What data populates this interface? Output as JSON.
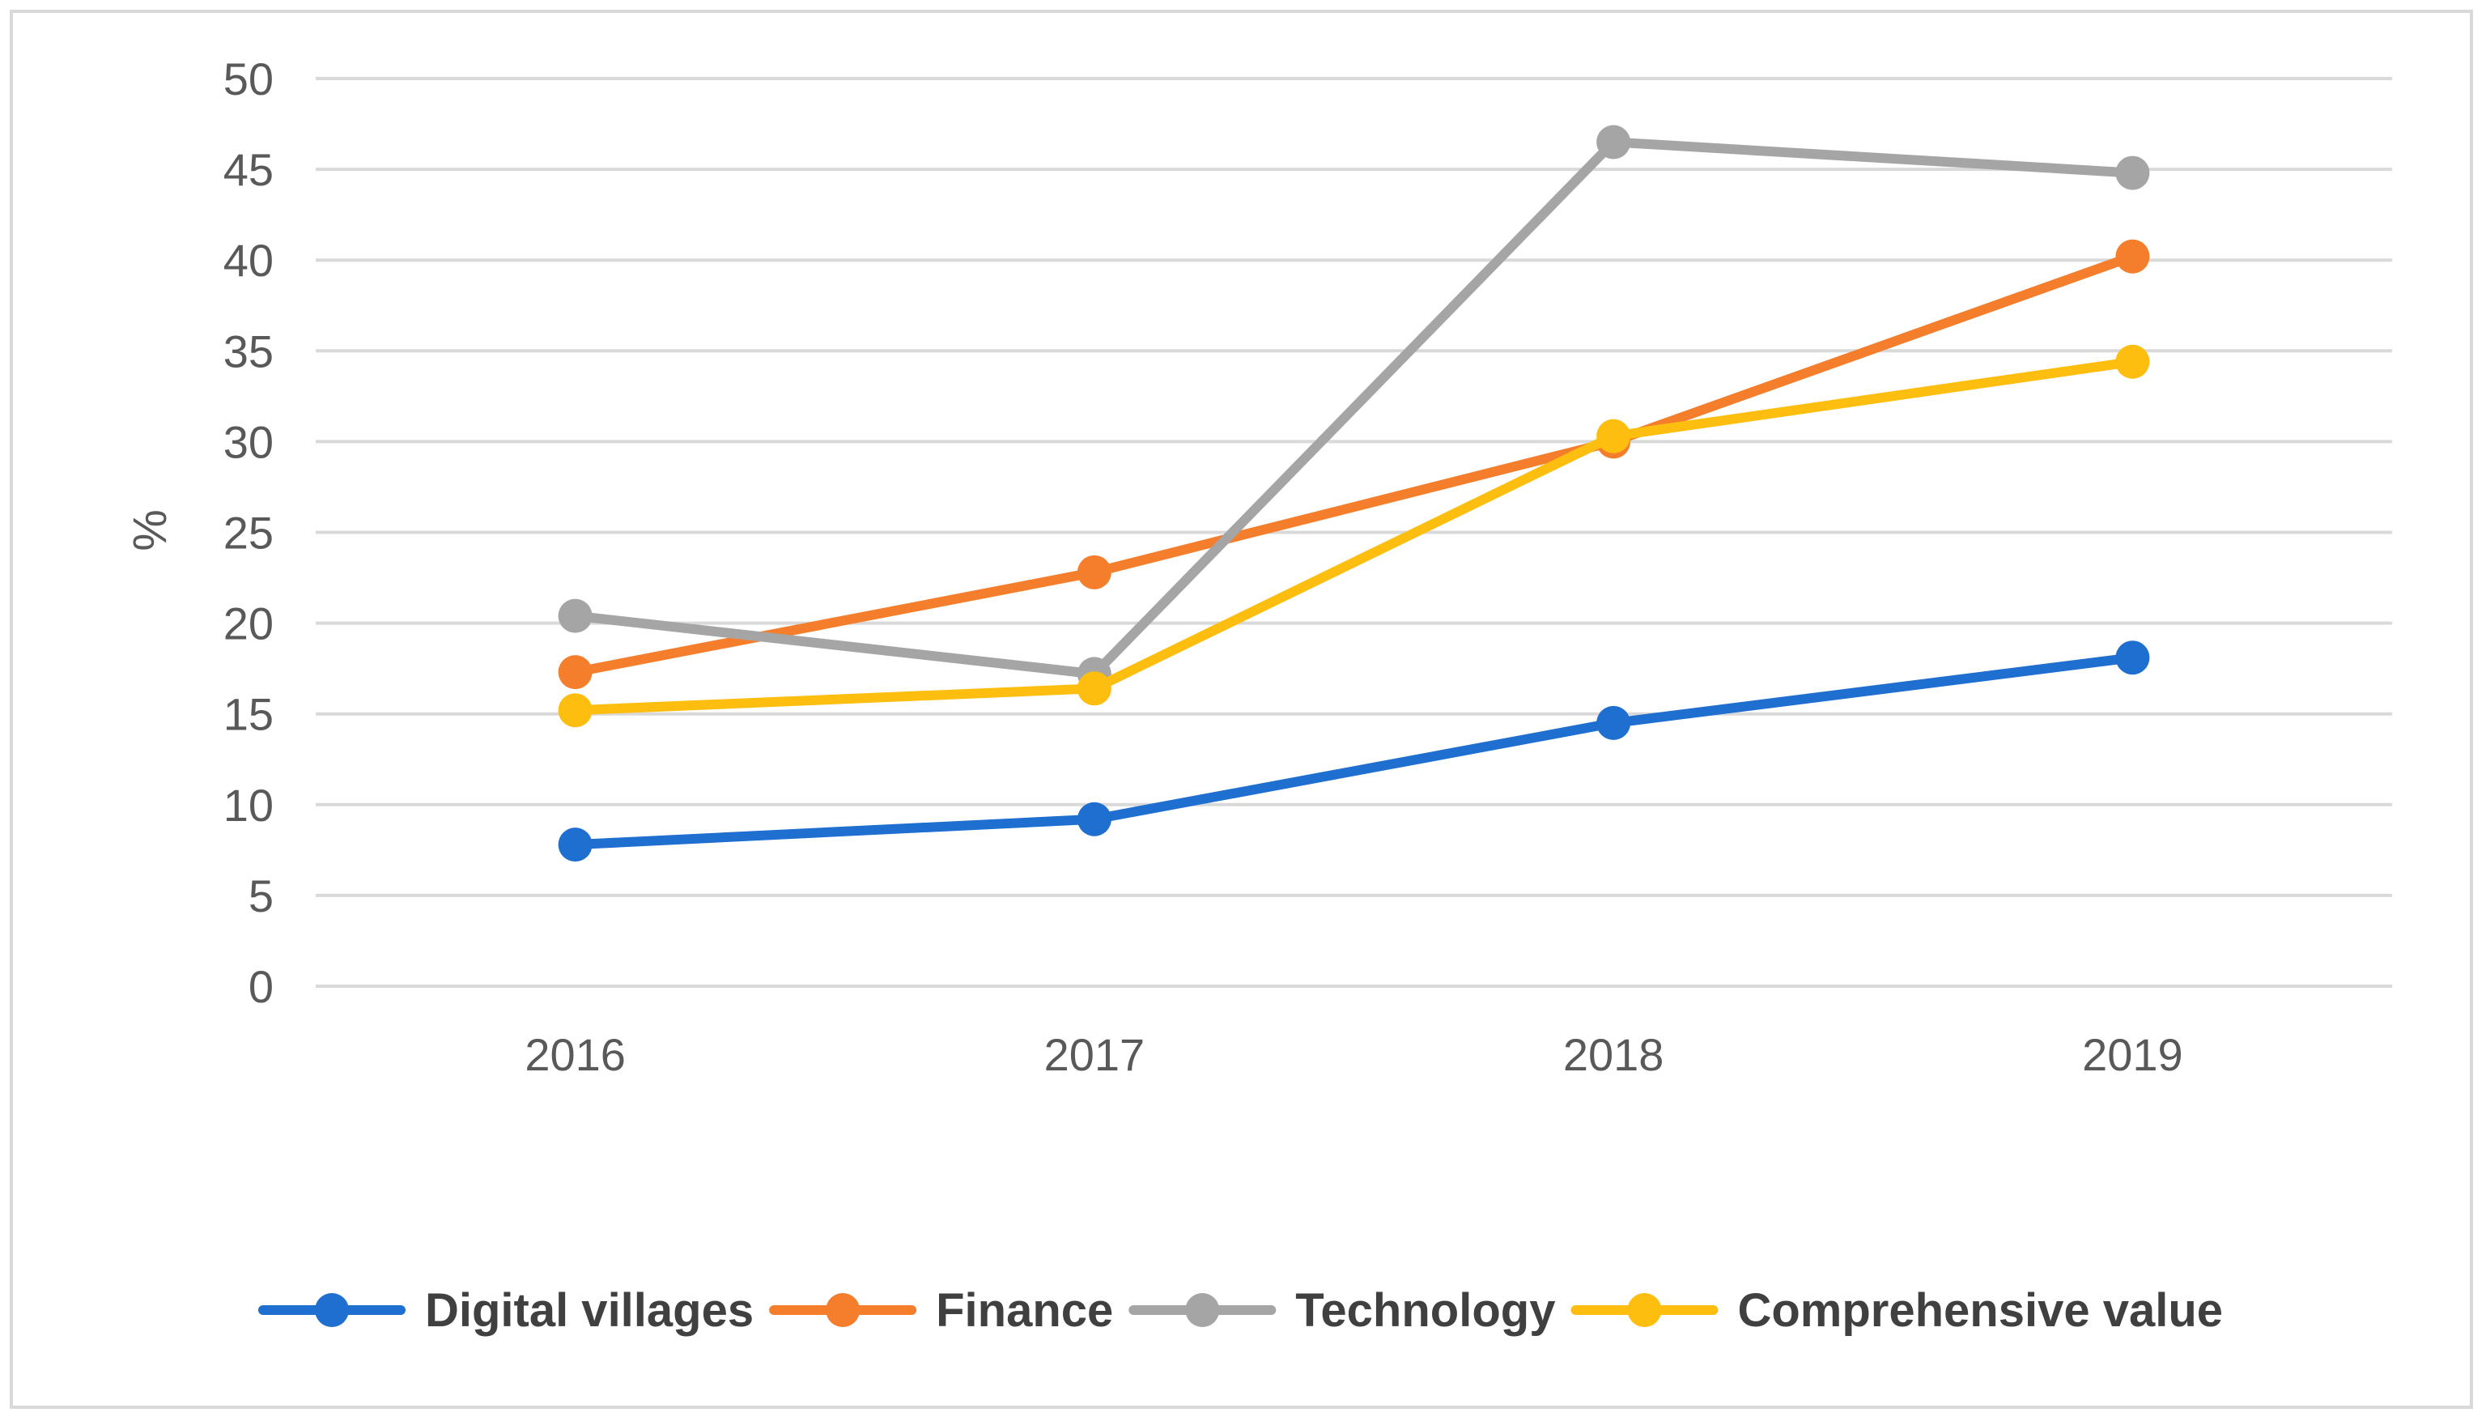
{
  "chart_data": {
    "type": "line",
    "title": "",
    "xlabel": "",
    "ylabel": "%",
    "categories": [
      "2016",
      "2017",
      "2018",
      "2019"
    ],
    "ylim": [
      0,
      50
    ],
    "yticks": [
      0,
      5,
      10,
      15,
      20,
      25,
      30,
      35,
      40,
      45,
      50
    ],
    "grid": true,
    "legend_position": "bottom",
    "series": [
      {
        "name": "Digital villages",
        "color": "#1f6fd0",
        "values": [
          7.8,
          9.2,
          14.5,
          18.1
        ]
      },
      {
        "name": "Finance",
        "color": "#f47e2c",
        "values": [
          17.3,
          22.8,
          30.0,
          40.2
        ]
      },
      {
        "name": "Technology",
        "color": "#a5a5a5",
        "values": [
          20.4,
          17.2,
          46.5,
          44.8
        ]
      },
      {
        "name": "Comprehensive value",
        "color": "#fdbe10",
        "values": [
          15.2,
          16.4,
          30.3,
          34.4
        ]
      }
    ]
  }
}
